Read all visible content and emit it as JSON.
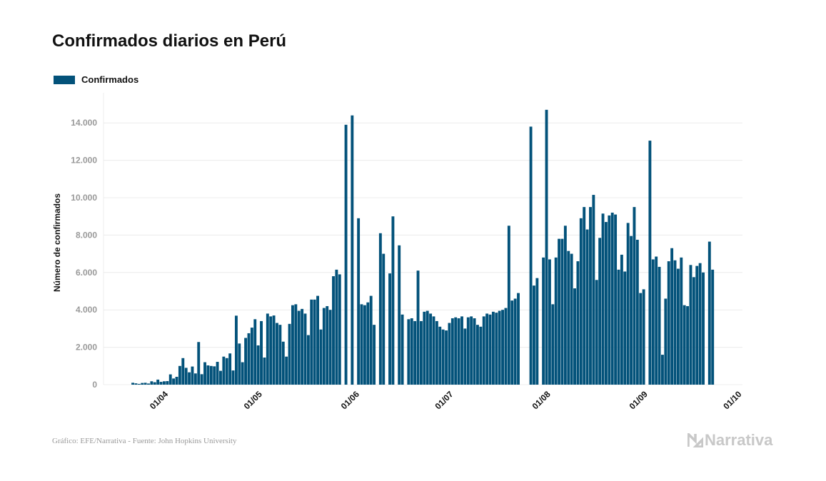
{
  "chart_data": {
    "type": "bar",
    "title": "Confirmados diarios en Perú",
    "xlabel": "",
    "ylabel": "Número de confirmados",
    "ylim": [
      0,
      15000
    ],
    "yticks": [
      0,
      2000,
      4000,
      6000,
      8000,
      10000,
      12000,
      14000
    ],
    "ytick_labels": [
      "0",
      "2.000",
      "4.000",
      "6.000",
      "8.000",
      "10.000",
      "12.000",
      "14.000"
    ],
    "grid": true,
    "legend": {
      "position": "top-left",
      "entries": [
        "Confirmados"
      ]
    },
    "color": "#03527a",
    "start_date": "2020-03-22",
    "xtick_labels": [
      "01/04",
      "01/05",
      "01/06",
      "01/07",
      "01/08",
      "01/09",
      "01/10"
    ],
    "xtick_day_index": [
      10,
      40,
      71,
      101,
      132,
      163,
      193
    ],
    "series": [
      {
        "name": "Confirmados",
        "values": [
          100,
          70,
          40,
          90,
          100,
          60,
          180,
          130,
          270,
          150,
          180,
          190,
          550,
          330,
          420,
          1000,
          1420,
          900,
          660,
          970,
          600,
          2280,
          560,
          1200,
          1030,
          1000,
          980,
          1220,
          740,
          1500,
          1420,
          1670,
          760,
          3690,
          2200,
          1200,
          2500,
          2750,
          3050,
          3500,
          2100,
          3400,
          1450,
          3800,
          3650,
          3700,
          3300,
          3200,
          2300,
          1500,
          3250,
          4250,
          4300,
          3950,
          4050,
          3800,
          2650,
          4550,
          4550,
          4750,
          2950,
          4100,
          4200,
          4000,
          5800,
          6150,
          5900,
          0,
          13900,
          0,
          14400,
          0,
          8900,
          4300,
          4250,
          4400,
          4750,
          3200,
          0,
          8100,
          7000,
          0,
          5950,
          9000,
          0,
          7450,
          3750,
          0,
          3500,
          3550,
          3400,
          6100,
          3400,
          3900,
          3950,
          3800,
          3650,
          3400,
          3100,
          2950,
          2900,
          3300,
          3550,
          3600,
          3550,
          3650,
          3000,
          3600,
          3650,
          3550,
          3200,
          3100,
          3650,
          3800,
          3750,
          3900,
          3850,
          3950,
          4000,
          4100,
          8500,
          4500,
          4600,
          4900,
          0,
          0,
          0,
          13800,
          5300,
          5700,
          0,
          6800,
          14700,
          6700,
          4300,
          6800,
          7800,
          7800,
          8500,
          7150,
          7000,
          5150,
          6600,
          8900,
          9500,
          8300,
          9500,
          10150,
          5600,
          7850,
          9150,
          8700,
          9050,
          9200,
          9100,
          6150,
          6950,
          6050,
          8650,
          7950,
          9500,
          7750,
          4900,
          5100,
          0,
          13050,
          6700,
          6850,
          6300,
          1600,
          4600,
          6600,
          7300,
          6650,
          6200,
          6800,
          4250,
          4200,
          6400,
          5750,
          6350,
          6500,
          6000,
          0,
          7650,
          6150
        ]
      }
    ]
  },
  "footer": "Gráfico: EFE/Narrativa - Fuente: John Hopkins University",
  "logo": "Narrativa"
}
